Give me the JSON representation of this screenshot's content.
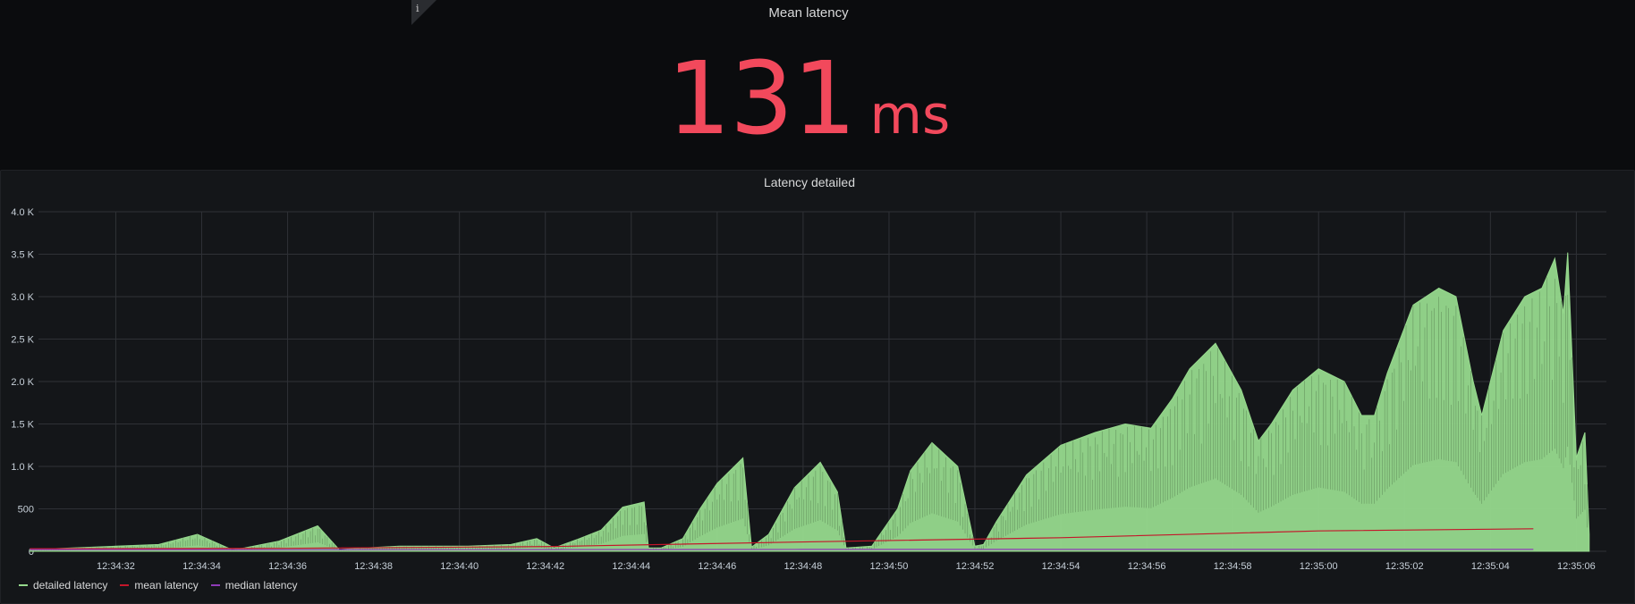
{
  "stat_panel": {
    "title": "Mean latency",
    "value": "131",
    "unit": "ms",
    "info_icon": "i",
    "value_color": "#f2495c"
  },
  "graph_panel": {
    "title": "Latency detailed"
  },
  "chart_data": {
    "type": "area",
    "title": "Latency detailed",
    "xlabel": "",
    "ylabel": "",
    "ylim": [
      0,
      4000
    ],
    "y_ticks": [
      "0",
      "500",
      "1.0 K",
      "1.5 K",
      "2.0 K",
      "2.5 K",
      "3.0 K",
      "3.5 K",
      "4.0 K"
    ],
    "x_ticks": [
      "12:34:32",
      "12:34:34",
      "12:34:36",
      "12:34:38",
      "12:34:40",
      "12:34:42",
      "12:34:44",
      "12:34:46",
      "12:34:48",
      "12:34:50",
      "12:34:52",
      "12:34:54",
      "12:34:56",
      "12:34:58",
      "12:35:00",
      "12:35:02",
      "12:35:04",
      "12:35:06"
    ],
    "grid": true,
    "legend_placement": "bottom-left",
    "series": [
      {
        "name": "detailed latency",
        "color": "#96d98d",
        "x_seconds": [
          30.0,
          31.0,
          32.0,
          33.0,
          33.9,
          34.7,
          35.0,
          35.8,
          36.7,
          37.2,
          37.8,
          38.6,
          39.4,
          40.2,
          41.2,
          41.8,
          42.2,
          42.8,
          43.3,
          43.8,
          44.3,
          44.4,
          44.7,
          45.2,
          45.6,
          46.0,
          46.6,
          46.8,
          47.2,
          47.8,
          48.4,
          48.8,
          49.0,
          49.6,
          50.2,
          50.5,
          51.0,
          51.6,
          52.0,
          52.2,
          52.5,
          53.2,
          54.0,
          54.8,
          55.5,
          56.1,
          56.6,
          57.0,
          57.6,
          58.2,
          58.6,
          58.9,
          59.4,
          60.0,
          60.6,
          61.0,
          61.3,
          61.6,
          62.2,
          62.8,
          63.2,
          63.6,
          63.8,
          64.3,
          64.8,
          65.2,
          65.5,
          65.7,
          65.8,
          66.0,
          66.2,
          66.3
        ],
        "values": [
          20,
          40,
          60,
          80,
          200,
          20,
          40,
          120,
          300,
          20,
          40,
          60,
          60,
          60,
          80,
          150,
          40,
          150,
          250,
          520,
          580,
          40,
          40,
          150,
          500,
          800,
          1100,
          50,
          200,
          750,
          1050,
          700,
          40,
          60,
          500,
          950,
          1280,
          1000,
          60,
          80,
          350,
          900,
          1250,
          1400,
          1500,
          1450,
          1800,
          2150,
          2450,
          1900,
          1300,
          1500,
          1900,
          2150,
          2000,
          1600,
          1600,
          2100,
          2900,
          3100,
          3000,
          2000,
          1600,
          2600,
          3000,
          3100,
          3450,
          2800,
          3520,
          1100,
          1400,
          200
        ]
      },
      {
        "name": "mean latency",
        "color": "#c4162a",
        "x_seconds": [
          30.0,
          36.0,
          42.0,
          48.0,
          54.0,
          60.0,
          64.0,
          65.0
        ],
        "values": [
          30,
          35,
          55,
          110,
          160,
          240,
          260,
          265
        ]
      },
      {
        "name": "median latency",
        "color": "#8f3bb8",
        "x_seconds": [
          30.0,
          36.0,
          42.0,
          48.0,
          54.0,
          60.0,
          64.0,
          65.0
        ],
        "values": [
          20,
          18,
          20,
          22,
          22,
          22,
          22,
          22
        ]
      }
    ]
  }
}
